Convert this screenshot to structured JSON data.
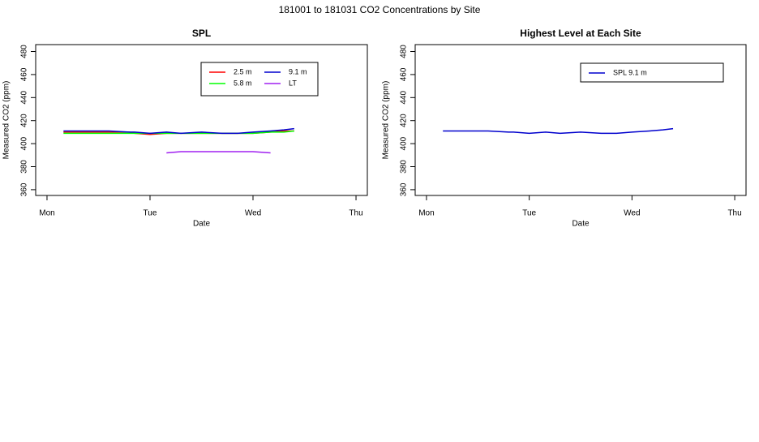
{
  "title": "181001  to  181031 CO2 Concentrations by Site",
  "chart_data": [
    {
      "type": "line",
      "title": "SPL",
      "x_label": "Date",
      "y_label": "Measured CO2 (ppm)",
      "x": [
        0.16,
        0.4,
        0.6,
        0.8,
        0.85,
        1.0,
        1.16,
        1.3,
        1.5,
        1.7,
        1.85,
        2.0,
        2.17,
        2.3,
        2.4
      ],
      "xlim": [
        -0.11,
        3.11
      ],
      "xticks": [
        {
          "value": 0,
          "label": "Mon"
        },
        {
          "value": 1,
          "label": "Tue"
        },
        {
          "value": 2,
          "label": "Wed"
        },
        {
          "value": 3,
          "label": "Thu"
        }
      ],
      "ylim": [
        355,
        486
      ],
      "yticks": [
        360,
        380,
        400,
        420,
        440,
        460,
        480
      ],
      "legend": "top-right",
      "legend_columns": 2,
      "series": [
        {
          "name": "2.5 m",
          "color": "#ff0000",
          "values": [
            410,
            410,
            410,
            410,
            409,
            408,
            409,
            409,
            409,
            409,
            409,
            409,
            410,
            411,
            411
          ]
        },
        {
          "name": "5.8 m",
          "color": "#00ff00",
          "values": [
            409,
            409,
            409,
            409,
            409,
            409,
            409,
            409,
            409,
            409,
            409,
            409,
            410,
            410,
            411
          ]
        },
        {
          "name": "9.1 m",
          "color": "#0000cd",
          "values": [
            411,
            411,
            411,
            410,
            410,
            409,
            410,
            409,
            410,
            409,
            409,
            410,
            411,
            412,
            413
          ]
        },
        {
          "name": "LT",
          "color": "#a020f0",
          "values": [
            null,
            null,
            null,
            null,
            null,
            null,
            392,
            393,
            393,
            393,
            393,
            393,
            392,
            null,
            null
          ]
        }
      ]
    },
    {
      "type": "line",
      "title": "Highest Level at Each Site",
      "x_label": "Date",
      "y_label": "Measured CO2 (ppm)",
      "x": [
        0.16,
        0.4,
        0.6,
        0.8,
        0.85,
        1.0,
        1.16,
        1.3,
        1.5,
        1.7,
        1.85,
        2.0,
        2.17,
        2.3,
        2.4
      ],
      "xlim": [
        -0.11,
        3.11
      ],
      "xticks": [
        {
          "value": 0,
          "label": "Mon"
        },
        {
          "value": 1,
          "label": "Tue"
        },
        {
          "value": 2,
          "label": "Wed"
        },
        {
          "value": 3,
          "label": "Thu"
        }
      ],
      "ylim": [
        355,
        486
      ],
      "yticks": [
        360,
        380,
        400,
        420,
        440,
        460,
        480
      ],
      "legend": "top-right",
      "legend_columns": 1,
      "series": [
        {
          "name": "SPL  9.1 m",
          "color": "#0000cd",
          "values": [
            411,
            411,
            411,
            410,
            410,
            409,
            410,
            409,
            410,
            409,
            409,
            410,
            411,
            412,
            413
          ]
        }
      ]
    }
  ]
}
